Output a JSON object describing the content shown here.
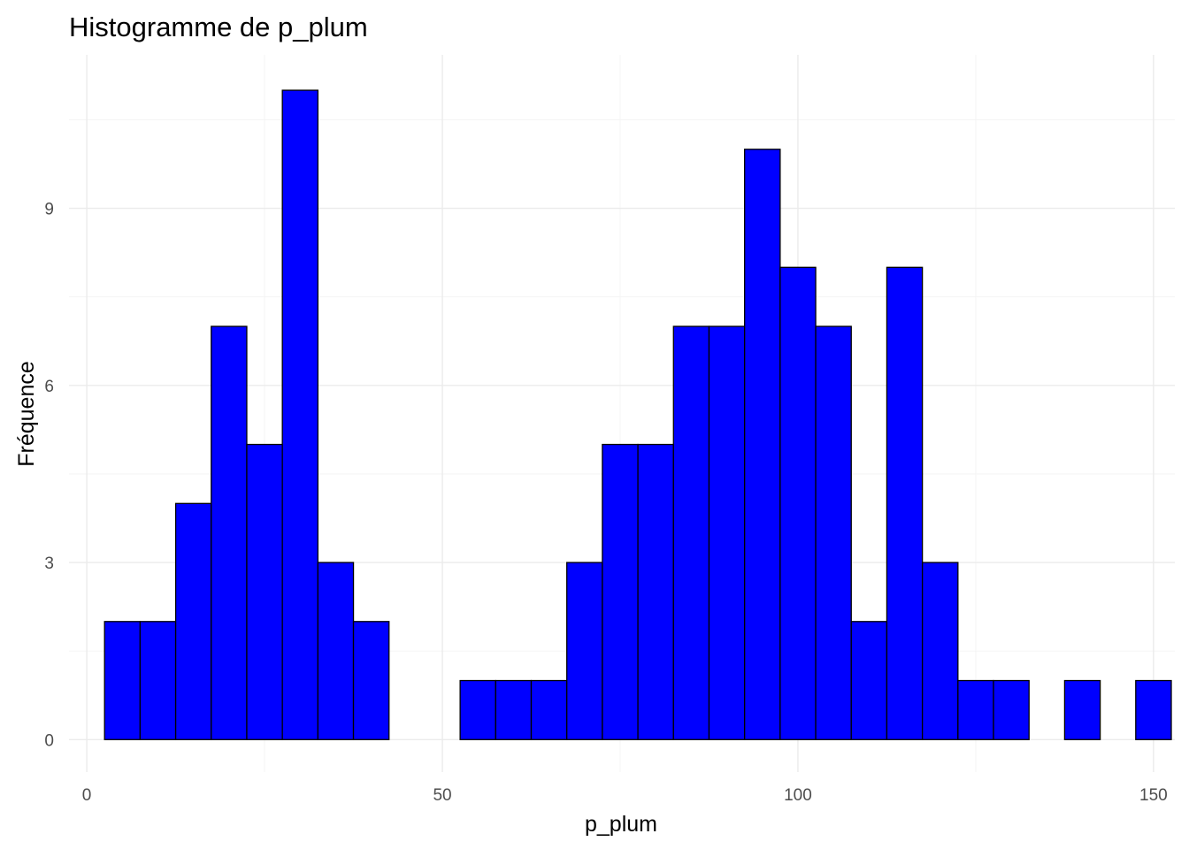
{
  "chart_data": {
    "type": "bar",
    "title": "Histogramme de p_plum",
    "xlabel": "p_plum",
    "ylabel": "Fréquence",
    "xlim": [
      -2.5,
      153.0
    ],
    "ylim": [
      -0.55,
      11.6
    ],
    "x_ticks": [
      0,
      50,
      100,
      150
    ],
    "y_ticks": [
      0,
      3,
      6,
      9
    ],
    "x_tick_labels": [
      "0",
      "50",
      "100",
      "150"
    ],
    "y_tick_labels": [
      "0",
      "3",
      "6",
      "9"
    ],
    "grid": true,
    "bin_width": 5,
    "bins": [
      {
        "x_start": 2.5,
        "x_end": 7.5,
        "count": 2
      },
      {
        "x_start": 7.5,
        "x_end": 12.5,
        "count": 2
      },
      {
        "x_start": 12.5,
        "x_end": 17.5,
        "count": 4
      },
      {
        "x_start": 17.5,
        "x_end": 22.5,
        "count": 7
      },
      {
        "x_start": 22.5,
        "x_end": 27.5,
        "count": 5
      },
      {
        "x_start": 27.5,
        "x_end": 32.5,
        "count": 11
      },
      {
        "x_start": 32.5,
        "x_end": 37.5,
        "count": 3
      },
      {
        "x_start": 37.5,
        "x_end": 42.5,
        "count": 2
      },
      {
        "x_start": 42.5,
        "x_end": 47.5,
        "count": 0
      },
      {
        "x_start": 47.5,
        "x_end": 52.5,
        "count": 0
      },
      {
        "x_start": 52.5,
        "x_end": 57.5,
        "count": 1
      },
      {
        "x_start": 57.5,
        "x_end": 62.5,
        "count": 1
      },
      {
        "x_start": 62.5,
        "x_end": 67.5,
        "count": 1
      },
      {
        "x_start": 67.5,
        "x_end": 72.5,
        "count": 3
      },
      {
        "x_start": 72.5,
        "x_end": 77.5,
        "count": 5
      },
      {
        "x_start": 77.5,
        "x_end": 82.5,
        "count": 5
      },
      {
        "x_start": 82.5,
        "x_end": 87.5,
        "count": 7
      },
      {
        "x_start": 87.5,
        "x_end": 92.5,
        "count": 7
      },
      {
        "x_start": 92.5,
        "x_end": 97.5,
        "count": 10
      },
      {
        "x_start": 97.5,
        "x_end": 102.5,
        "count": 8
      },
      {
        "x_start": 102.5,
        "x_end": 107.5,
        "count": 7
      },
      {
        "x_start": 107.5,
        "x_end": 112.5,
        "count": 2
      },
      {
        "x_start": 112.5,
        "x_end": 117.5,
        "count": 8
      },
      {
        "x_start": 117.5,
        "x_end": 122.5,
        "count": 3
      },
      {
        "x_start": 122.5,
        "x_end": 127.5,
        "count": 1
      },
      {
        "x_start": 127.5,
        "x_end": 132.5,
        "count": 1
      },
      {
        "x_start": 132.5,
        "x_end": 137.5,
        "count": 0
      },
      {
        "x_start": 137.5,
        "x_end": 142.5,
        "count": 1
      },
      {
        "x_start": 142.5,
        "x_end": 147.5,
        "count": 0
      },
      {
        "x_start": 147.5,
        "x_end": 152.5,
        "count": 1
      }
    ],
    "bar_fill": "#0000ff",
    "bar_outline": "#000000",
    "grid_color": "#ebebeb",
    "background": "#ffffff"
  }
}
